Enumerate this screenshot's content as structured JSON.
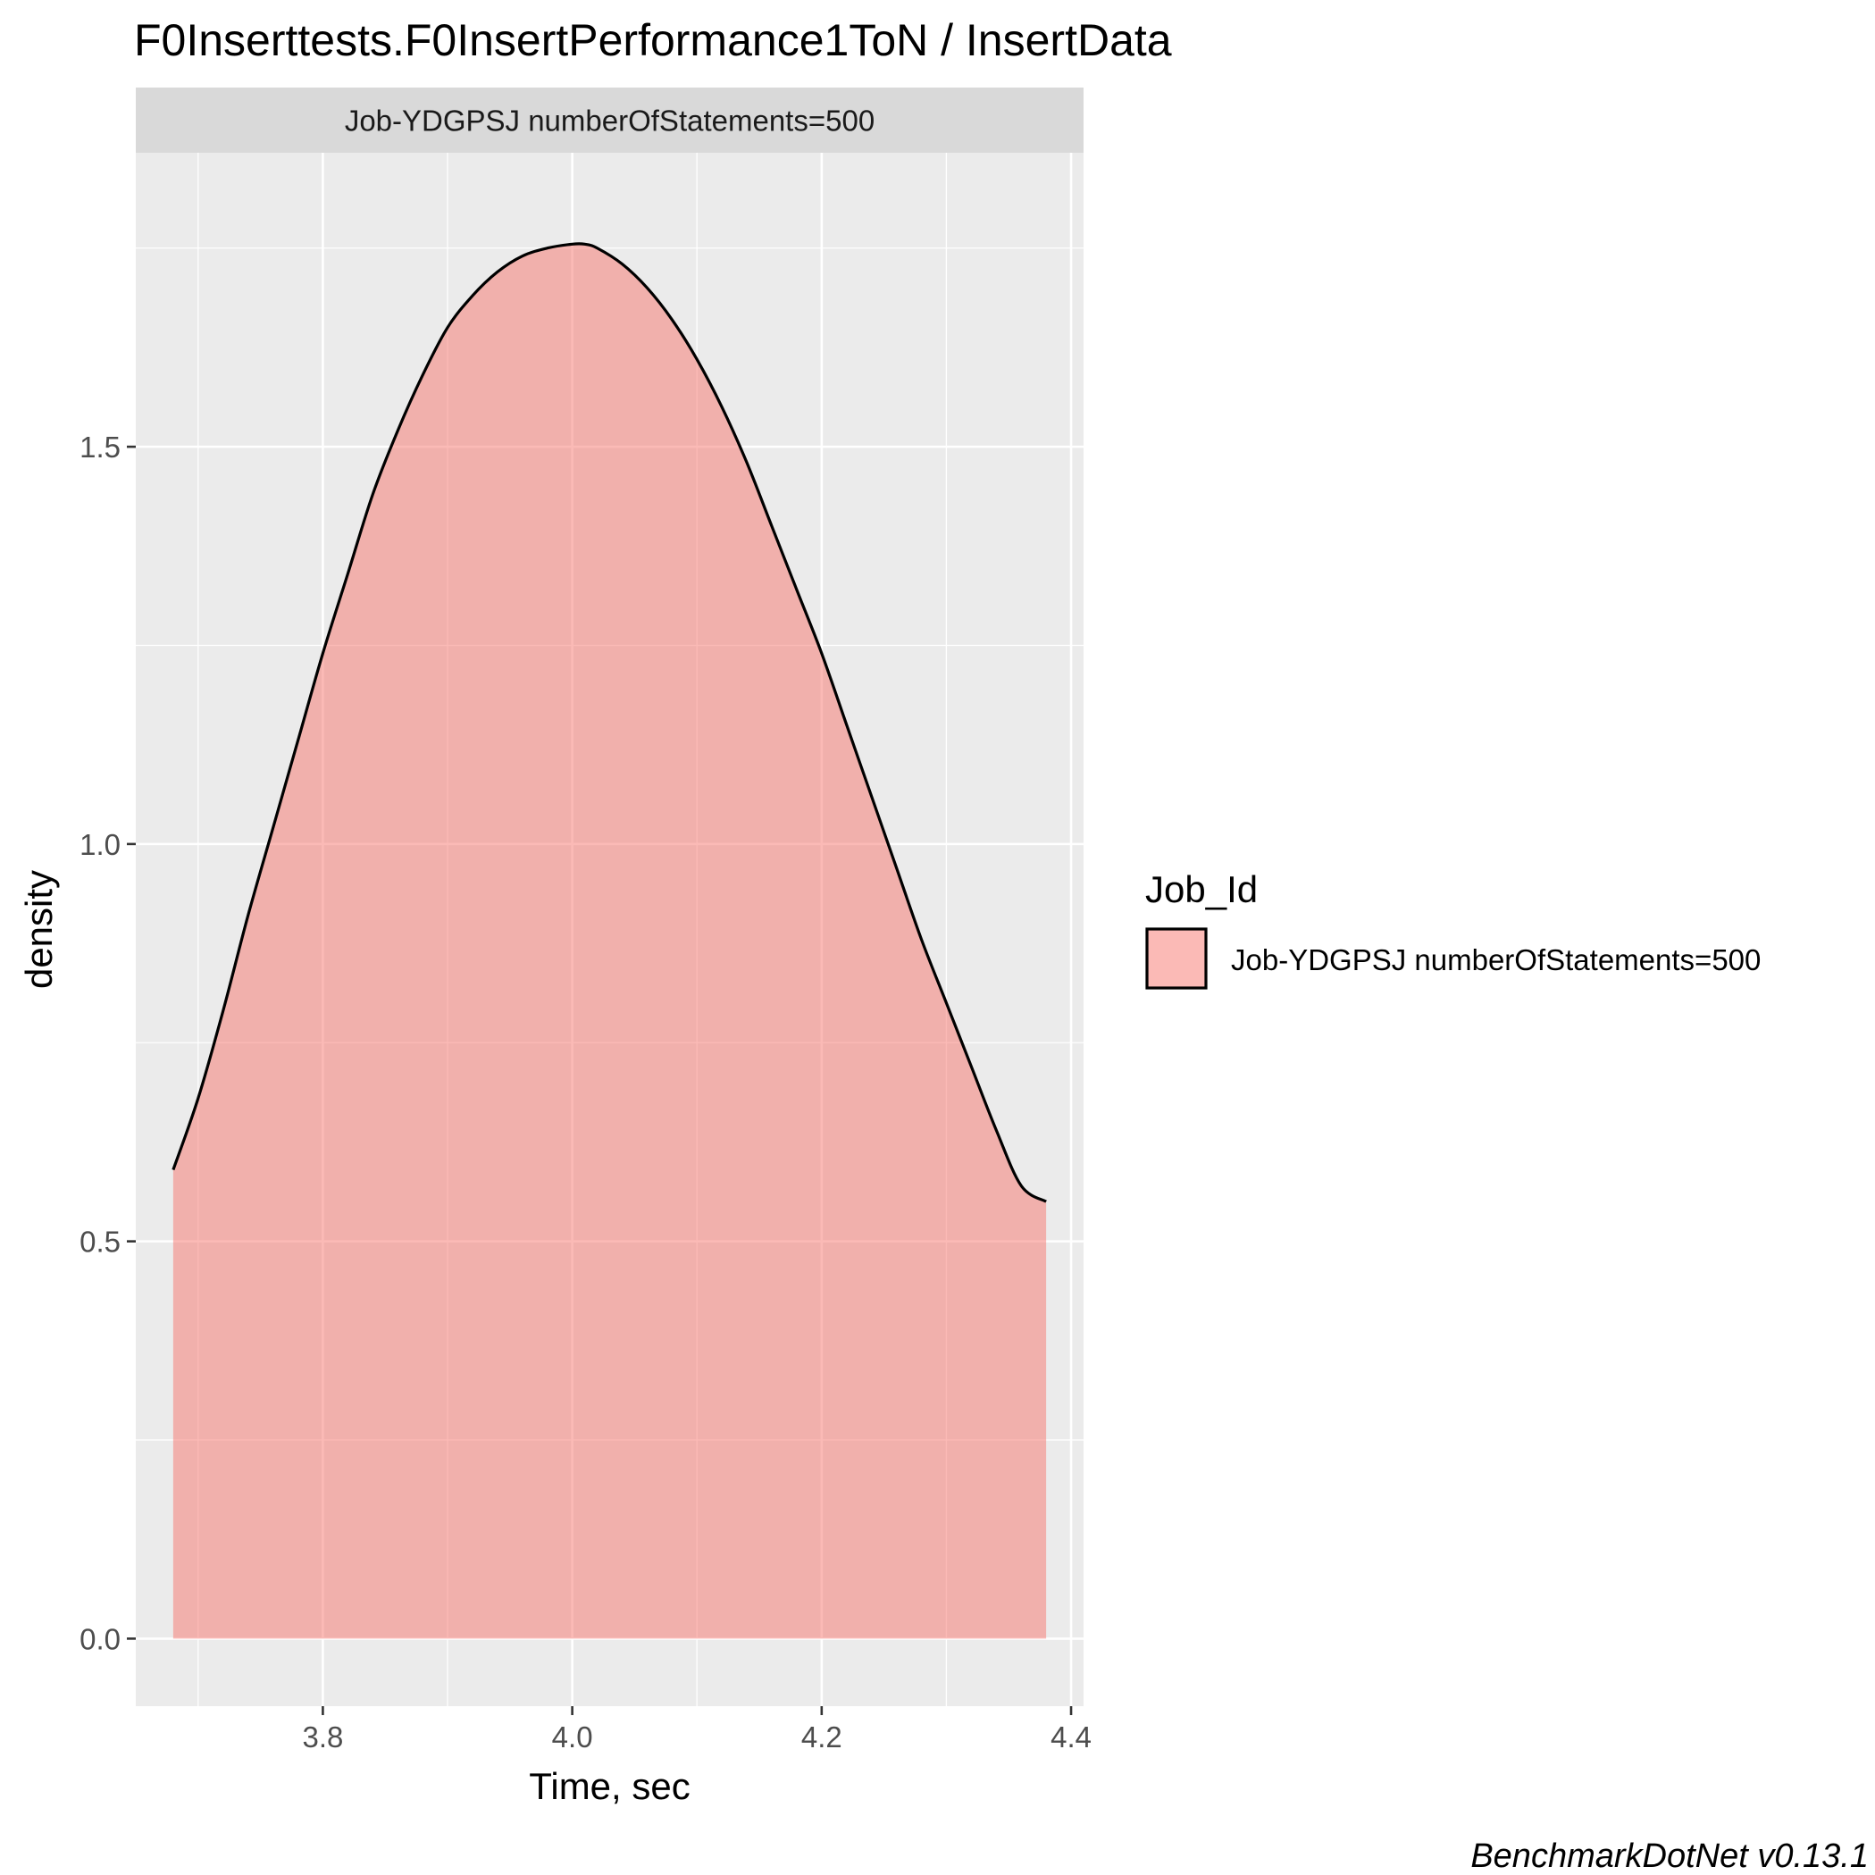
{
  "chart_data": {
    "type": "area",
    "title": "F0Inserttests.F0InsertPerformance1ToN / InsertData",
    "facet_label": "Job-YDGPSJ numberOfStatements=500",
    "xlabel": "Time, sec",
    "ylabel": "density",
    "xlim": [
      3.65,
      4.41
    ],
    "ylim": [
      -0.085,
      1.87
    ],
    "x_ticks": [
      3.8,
      4.0,
      4.2,
      4.4
    ],
    "x_tick_labels": [
      "3.8",
      "4.0",
      "4.2",
      "4.4"
    ],
    "y_ticks": [
      0.0,
      0.5,
      1.0,
      1.5
    ],
    "y_tick_labels": [
      "0.0",
      "0.5",
      "1.0",
      "1.5"
    ],
    "grid": true,
    "legend": {
      "title": "Job_Id",
      "placement": "right",
      "entries": [
        "Job-YDGPSJ numberOfStatements=500"
      ]
    },
    "series": [
      {
        "name": "Job-YDGPSJ numberOfStatements=500",
        "x": [
          3.68,
          3.7,
          3.72,
          3.74,
          3.76,
          3.78,
          3.8,
          3.82,
          3.84,
          3.86,
          3.88,
          3.9,
          3.92,
          3.94,
          3.96,
          3.98,
          4.0,
          4.01,
          4.02,
          4.04,
          4.06,
          4.08,
          4.1,
          4.12,
          4.14,
          4.16,
          4.18,
          4.2,
          4.22,
          4.24,
          4.26,
          4.28,
          4.3,
          4.32,
          4.34,
          4.36,
          4.38
        ],
        "y": [
          0.59,
          0.68,
          0.79,
          0.91,
          1.02,
          1.13,
          1.24,
          1.34,
          1.44,
          1.52,
          1.59,
          1.65,
          1.69,
          1.72,
          1.74,
          1.75,
          1.755,
          1.755,
          1.75,
          1.73,
          1.7,
          1.66,
          1.61,
          1.55,
          1.48,
          1.4,
          1.32,
          1.24,
          1.15,
          1.06,
          0.97,
          0.88,
          0.8,
          0.72,
          0.64,
          0.57,
          0.55
        ]
      }
    ],
    "fill_color": "#F8766D",
    "fill_alpha": 0.5,
    "line_color": "#000000"
  },
  "caption": "BenchmarkDotNet v0.13.1",
  "colors": {
    "panel_bg": "#EBEBEB",
    "strip_bg": "#D9D9D9",
    "grid_major": "#FFFFFF"
  }
}
